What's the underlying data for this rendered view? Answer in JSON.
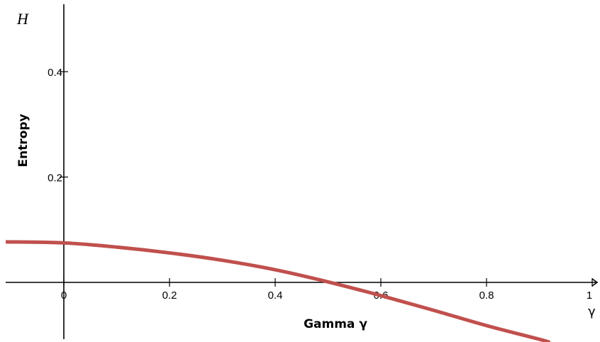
{
  "chart_data": {
    "type": "line",
    "xlabel": "Gamma γ",
    "ylabel": "Entropy",
    "x_axis_symbol": "γ",
    "y_axis_symbol": "H",
    "xlim": [
      -0.11,
      1.02
    ],
    "ylim": [
      -0.11,
      0.53
    ],
    "x_ticks": [
      {
        "value": 0,
        "label": "0"
      },
      {
        "value": 0.2,
        "label": "0.2"
      },
      {
        "value": 0.4,
        "label": "0.4"
      },
      {
        "value": 0.6,
        "label": "0.6"
      },
      {
        "value": 0.8,
        "label": "0.8"
      },
      {
        "value": 1,
        "label": "1"
      }
    ],
    "y_ticks": [
      {
        "value": 0.2,
        "label": "0.2"
      },
      {
        "value": 0.4,
        "label": "0.4"
      }
    ],
    "grid": false,
    "series": [
      {
        "color": "#c0504d",
        "x": [
          -0.11,
          0,
          0.1,
          0.2,
          0.3,
          0.4,
          0.5,
          0.6,
          0.7,
          0.8,
          0.9,
          0.92
        ],
        "y": [
          0.077,
          0.075,
          0.067,
          0.056,
          0.042,
          0.024,
          0.001,
          -0.025,
          -0.053,
          -0.082,
          -0.108,
          -0.114
        ]
      }
    ]
  }
}
